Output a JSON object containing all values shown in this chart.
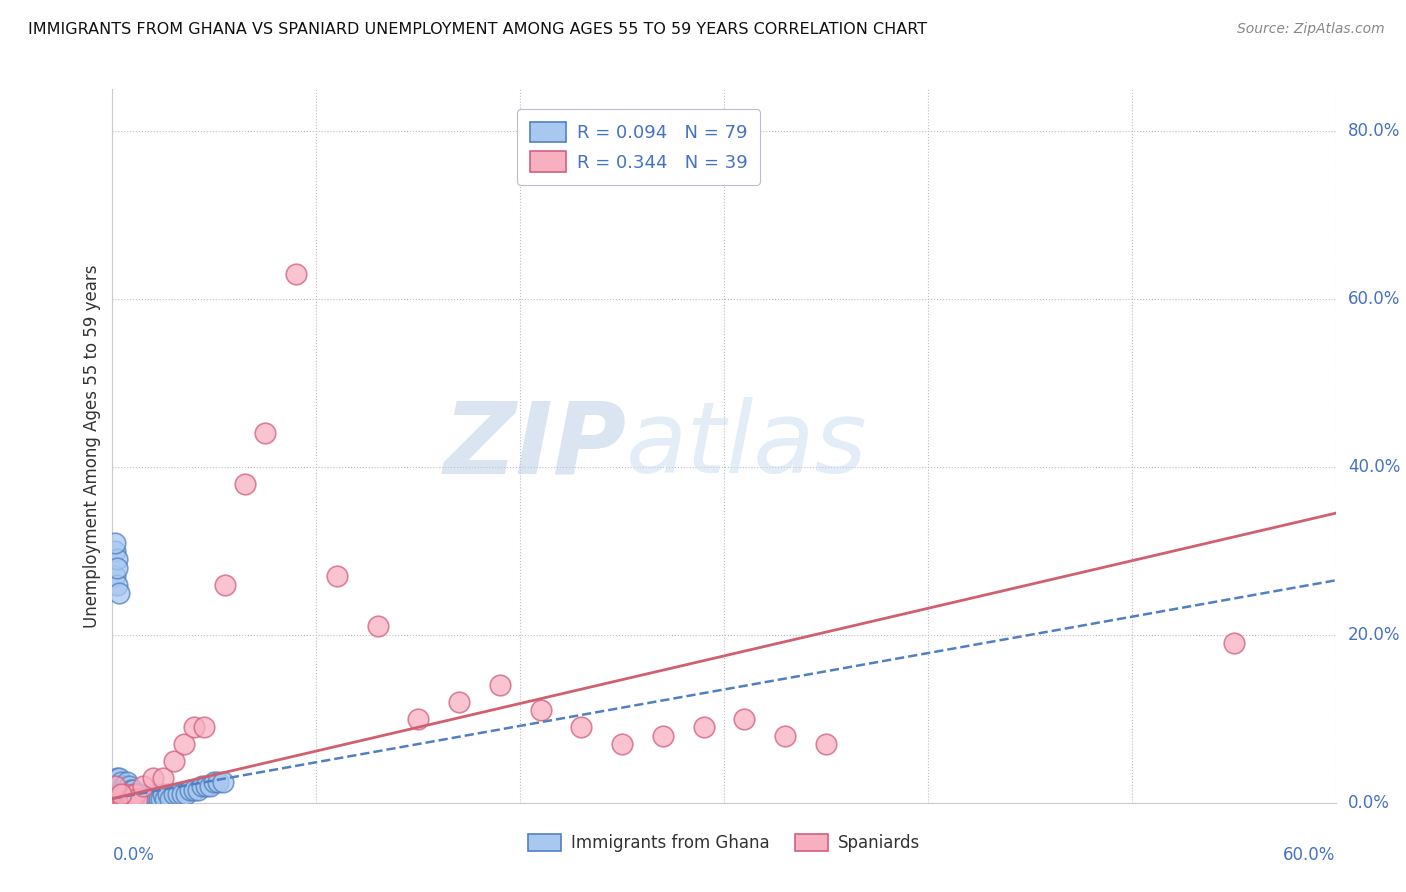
{
  "title": "IMMIGRANTS FROM GHANA VS SPANIARD UNEMPLOYMENT AMONG AGES 55 TO 59 YEARS CORRELATION CHART",
  "source": "Source: ZipAtlas.com",
  "ylabel": "Unemployment Among Ages 55 to 59 years",
  "legend_blue_label": "R = 0.094   N = 79",
  "legend_pink_label": "R = 0.344   N = 39",
  "legend_bottom_blue": "Immigrants from Ghana",
  "legend_bottom_pink": "Spaniards",
  "blue_fill": "#A8C8F0",
  "blue_edge": "#5080C0",
  "pink_fill": "#F8B0C0",
  "pink_edge": "#D06080",
  "blue_trend_color": "#5080C0",
  "pink_trend_color": "#D06070",
  "watermark_color": "#C8DCF0",
  "right_tick_color": "#4472C4",
  "xlim": [
    0.0,
    0.6
  ],
  "ylim": [
    0.0,
    0.85
  ],
  "blue_x": [
    0.001,
    0.001,
    0.001,
    0.002,
    0.002,
    0.002,
    0.002,
    0.002,
    0.003,
    0.003,
    0.003,
    0.003,
    0.003,
    0.004,
    0.004,
    0.004,
    0.004,
    0.005,
    0.005,
    0.005,
    0.005,
    0.006,
    0.006,
    0.006,
    0.006,
    0.007,
    0.007,
    0.007,
    0.007,
    0.008,
    0.008,
    0.008,
    0.009,
    0.009,
    0.009,
    0.01,
    0.01,
    0.01,
    0.011,
    0.011,
    0.012,
    0.012,
    0.013,
    0.013,
    0.014,
    0.015,
    0.016,
    0.017,
    0.018,
    0.019,
    0.02,
    0.021,
    0.022,
    0.023,
    0.024,
    0.025,
    0.026,
    0.027,
    0.028,
    0.03,
    0.032,
    0.034,
    0.036,
    0.038,
    0.04,
    0.042,
    0.044,
    0.046,
    0.048,
    0.05,
    0.052,
    0.054,
    0.001,
    0.001,
    0.002,
    0.002,
    0.003,
    0.001,
    0.002
  ],
  "blue_y": [
    0.005,
    0.01,
    0.02,
    0.005,
    0.01,
    0.015,
    0.02,
    0.03,
    0.005,
    0.01,
    0.015,
    0.02,
    0.03,
    0.005,
    0.01,
    0.015,
    0.025,
    0.005,
    0.01,
    0.015,
    0.02,
    0.005,
    0.01,
    0.015,
    0.02,
    0.005,
    0.01,
    0.015,
    0.025,
    0.005,
    0.01,
    0.02,
    0.005,
    0.01,
    0.015,
    0.005,
    0.01,
    0.015,
    0.005,
    0.01,
    0.005,
    0.01,
    0.005,
    0.01,
    0.005,
    0.005,
    0.005,
    0.005,
    0.005,
    0.005,
    0.005,
    0.01,
    0.005,
    0.005,
    0.005,
    0.01,
    0.005,
    0.01,
    0.005,
    0.01,
    0.01,
    0.01,
    0.01,
    0.015,
    0.015,
    0.015,
    0.02,
    0.02,
    0.02,
    0.025,
    0.025,
    0.025,
    0.27,
    0.3,
    0.26,
    0.29,
    0.25,
    0.31,
    0.28
  ],
  "pink_x": [
    0.001,
    0.002,
    0.003,
    0.004,
    0.005,
    0.006,
    0.007,
    0.008,
    0.009,
    0.01,
    0.011,
    0.012,
    0.015,
    0.02,
    0.025,
    0.03,
    0.035,
    0.04,
    0.045,
    0.055,
    0.065,
    0.075,
    0.09,
    0.11,
    0.13,
    0.15,
    0.17,
    0.19,
    0.21,
    0.23,
    0.25,
    0.27,
    0.29,
    0.31,
    0.33,
    0.35,
    0.55,
    0.001,
    0.004
  ],
  "pink_y": [
    0.005,
    0.005,
    0.005,
    0.005,
    0.005,
    0.01,
    0.005,
    0.005,
    0.005,
    0.005,
    0.01,
    0.005,
    0.02,
    0.03,
    0.03,
    0.05,
    0.07,
    0.09,
    0.09,
    0.26,
    0.38,
    0.44,
    0.63,
    0.27,
    0.21,
    0.1,
    0.12,
    0.14,
    0.11,
    0.09,
    0.07,
    0.08,
    0.09,
    0.1,
    0.08,
    0.07,
    0.19,
    0.02,
    0.01
  ],
  "blue_trend_x": [
    0.0,
    0.6
  ],
  "blue_trend_y": [
    0.005,
    0.265
  ],
  "pink_trend_x": [
    0.0,
    0.6
  ],
  "pink_trend_y": [
    0.005,
    0.345
  ]
}
